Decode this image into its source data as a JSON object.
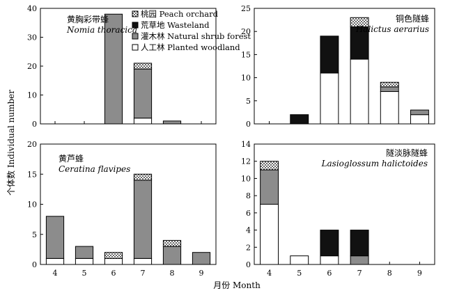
{
  "figure": {
    "ylabel": "个体数 Individual number",
    "xlabel": "月份 Month"
  },
  "legend": [
    {
      "key": "peach",
      "label": "桃园 Peach orchard",
      "fill": "dots"
    },
    {
      "key": "waste",
      "label": "荒草地 Wasteland",
      "fill": "#111111"
    },
    {
      "key": "shrub",
      "label": "灌木林 Natural shrub forest",
      "fill": "#8c8c8c"
    },
    {
      "key": "wood",
      "label": "人工林 Planted woodland",
      "fill": "#ffffff"
    }
  ],
  "chart_data": [
    {
      "type": "bar",
      "stacked": true,
      "title": "黄胸彩带蜂",
      "subtitle": "Nomia thoracica",
      "categories": [
        "4",
        "5",
        "6",
        "7",
        "8",
        "9"
      ],
      "ylim": [
        0,
        40
      ],
      "yticks": [
        0,
        10,
        20,
        30,
        40
      ],
      "series": [
        {
          "key": "wood",
          "values": [
            0,
            0,
            0,
            2,
            0,
            0
          ]
        },
        {
          "key": "shrub",
          "values": [
            0,
            0,
            38,
            17,
            1,
            0
          ]
        },
        {
          "key": "waste",
          "values": [
            0,
            0,
            0,
            0,
            0,
            0
          ]
        },
        {
          "key": "peach",
          "values": [
            0,
            0,
            0,
            2,
            0,
            0
          ]
        }
      ]
    },
    {
      "type": "bar",
      "stacked": true,
      "title": "铜色隧蜂",
      "subtitle": "Halictus aerarius",
      "categories": [
        "4",
        "5",
        "6",
        "7",
        "8",
        "9"
      ],
      "ylim": [
        0,
        25
      ],
      "yticks": [
        0,
        5,
        10,
        15,
        20,
        25
      ],
      "series": [
        {
          "key": "wood",
          "values": [
            0,
            0,
            11,
            14,
            7,
            2
          ]
        },
        {
          "key": "shrub",
          "values": [
            0,
            0,
            0,
            0,
            1,
            1
          ]
        },
        {
          "key": "waste",
          "values": [
            0,
            2,
            8,
            7,
            0,
            0
          ]
        },
        {
          "key": "peach",
          "values": [
            0,
            0,
            0,
            2,
            1,
            0
          ]
        }
      ]
    },
    {
      "type": "bar",
      "stacked": true,
      "title": "黄芦蜂",
      "subtitle": "Ceratina flavipes",
      "categories": [
        "4",
        "5",
        "6",
        "7",
        "8",
        "9"
      ],
      "ylim": [
        0,
        20
      ],
      "yticks": [
        0,
        5,
        10,
        15,
        20
      ],
      "series": [
        {
          "key": "wood",
          "values": [
            1,
            1,
            1,
            1,
            0,
            0
          ]
        },
        {
          "key": "shrub",
          "values": [
            7,
            2,
            0,
            13,
            3,
            2
          ]
        },
        {
          "key": "waste",
          "values": [
            0,
            0,
            0,
            0,
            0,
            0
          ]
        },
        {
          "key": "peach",
          "values": [
            0,
            0,
            1,
            1,
            1,
            0
          ]
        }
      ]
    },
    {
      "type": "bar",
      "stacked": true,
      "title": "隧淡脉隧蜂",
      "subtitle": "Lasioglossum halictoides",
      "categories": [
        "4",
        "5",
        "6",
        "7",
        "8",
        "9"
      ],
      "ylim": [
        0,
        14
      ],
      "yticks": [
        0,
        2,
        4,
        6,
        8,
        10,
        12,
        14
      ],
      "series": [
        {
          "key": "wood",
          "values": [
            7,
            1,
            1,
            0,
            0,
            0
          ]
        },
        {
          "key": "shrub",
          "values": [
            4,
            0,
            0,
            1,
            0,
            0
          ]
        },
        {
          "key": "waste",
          "values": [
            0,
            0,
            3,
            3,
            0,
            0
          ]
        },
        {
          "key": "peach",
          "values": [
            1,
            0,
            0,
            0,
            0,
            0
          ]
        }
      ]
    }
  ]
}
